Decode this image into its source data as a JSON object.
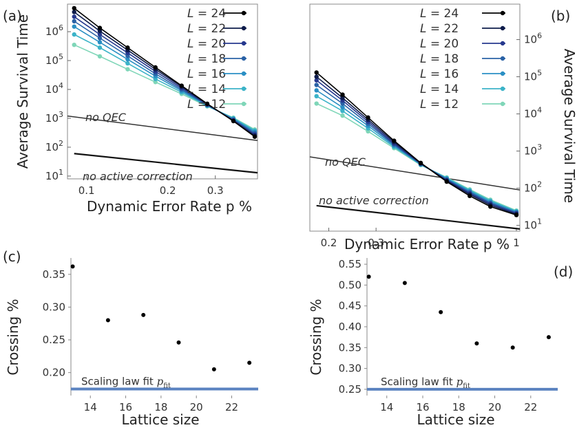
{
  "panels": [
    {
      "letter": "(a)",
      "xlabel": "Dynamic Error Rate p %",
      "ylabel": "Average Survival Time",
      "x_ticks": [
        "0.1",
        "0.2",
        "0.3"
      ],
      "y_ticks": [
        "10^1",
        "10^2",
        "10^3",
        "10^4",
        "10^5",
        "10^6"
      ],
      "annotations": [
        "no QEC",
        "no active correction"
      ],
      "legend_labels": [
        "L = 24",
        "L = 22",
        "L = 20",
        "L = 18",
        "L = 16",
        "L = 14",
        "L = 12"
      ]
    },
    {
      "letter": "(b)",
      "xlabel": "Dynamic Error Rate p %",
      "ylabel": "Average Survival Time",
      "x_ticks": [
        "0.2",
        "0.3",
        "1"
      ],
      "y_ticks": [
        "10^1",
        "10^2",
        "10^3",
        "10^4",
        "10^5",
        "10^6"
      ],
      "annotations": [
        "no QEC",
        "no active correction"
      ],
      "legend_labels": [
        "L = 24",
        "L = 22",
        "L = 20",
        "L = 18",
        "L = 16",
        "L = 14",
        "L = 12"
      ]
    },
    {
      "letter": "(c)",
      "xlabel": "Lattice size",
      "ylabel": "Crossing %",
      "x_ticks": [
        "14",
        "16",
        "18",
        "20",
        "22"
      ],
      "y_ticks": [
        "0.20",
        "0.25",
        "0.30",
        "0.35"
      ],
      "fit_label": "Scaling law fit p_fit"
    },
    {
      "letter": "(d)",
      "xlabel": "Lattice size",
      "ylabel": "Crossing %",
      "x_ticks": [
        "14",
        "16",
        "18",
        "20",
        "22"
      ],
      "y_ticks": [
        "0.25",
        "0.30",
        "0.35",
        "0.40",
        "0.45",
        "0.50",
        "0.55"
      ],
      "fit_label": "Scaling law fit p_fit"
    }
  ],
  "colors": {
    "L24": "#000000",
    "L22": "#0d1b4a",
    "L20": "#26388e",
    "L18": "#2a62a6",
    "L16": "#2a8fc4",
    "L14": "#3bb3c8",
    "L12": "#7fd6b8",
    "reference_line": "#333333",
    "fit_line": "#5a82c0",
    "points": "#000000"
  },
  "chart_data": [
    {
      "type": "line",
      "panel": "a",
      "x_scale": "log",
      "y_scale": "log",
      "xlim": [
        0.085,
        0.43
      ],
      "ylim": [
        8,
        9000000
      ],
      "x": [
        0.09,
        0.112,
        0.142,
        0.18,
        0.225,
        0.28,
        0.35,
        0.42
      ],
      "series": [
        {
          "name": "L = 24",
          "values": [
            6500000,
            1350000,
            280000,
            58000,
            13500,
            3200,
            800,
            230
          ]
        },
        {
          "name": "L = 22",
          "values": [
            4800000,
            1050000,
            230000,
            50000,
            12500,
            3100,
            820,
            250
          ]
        },
        {
          "name": "L = 20",
          "values": [
            3300000,
            800000,
            185000,
            42000,
            11200,
            3000,
            850,
            275
          ]
        },
        {
          "name": "L = 18",
          "values": [
            2300000,
            600000,
            145000,
            35000,
            10000,
            2900,
            900,
            305
          ]
        },
        {
          "name": "L = 16",
          "values": [
            1500000,
            430000,
            110000,
            29000,
            9000,
            2800,
            950,
            340
          ]
        },
        {
          "name": "L = 14",
          "values": [
            800000,
            280000,
            80000,
            23000,
            8000,
            2700,
            1000,
            375
          ]
        },
        {
          "name": "L = 12",
          "values": [
            350000,
            140000,
            50000,
            18000,
            7000,
            2600,
            1050,
            410
          ]
        }
      ],
      "reference_lines": [
        {
          "name": "no QEC",
          "x": [
            0.085,
            0.43
          ],
          "y": [
            1200,
            170
          ]
        },
        {
          "name": "no active correction",
          "x": [
            0.09,
            0.43
          ],
          "y": [
            60,
            13
          ]
        }
      ]
    },
    {
      "type": "line",
      "panel": "b",
      "x_scale": "log",
      "y_scale": "log",
      "xlim": [
        0.17,
        1.03
      ],
      "ylim": [
        7,
        9000000
      ],
      "x": [
        0.18,
        0.225,
        0.28,
        0.35,
        0.44,
        0.55,
        0.67,
        0.8,
        1.0
      ],
      "series": [
        {
          "name": "L = 24",
          "values": [
            130000,
            33000,
            8000,
            1900,
            480,
            150,
            62,
            32,
            19
          ]
        },
        {
          "name": "L = 22",
          "values": [
            100000,
            27000,
            7000,
            1750,
            470,
            158,
            68,
            35,
            20
          ]
        },
        {
          "name": "L = 20",
          "values": [
            80000,
            23000,
            6200,
            1600,
            460,
            165,
            73,
            38,
            21
          ]
        },
        {
          "name": "L = 18",
          "values": [
            60000,
            19000,
            5500,
            1500,
            450,
            172,
            78,
            40,
            22
          ]
        },
        {
          "name": "L = 16",
          "values": [
            43000,
            15000,
            4800,
            1400,
            440,
            180,
            83,
            43,
            23
          ]
        },
        {
          "name": "L = 14",
          "values": [
            30000,
            12000,
            4100,
            1300,
            430,
            188,
            88,
            46,
            24
          ]
        },
        {
          "name": "L = 12",
          "values": [
            19000,
            9000,
            3400,
            1200,
            420,
            195,
            93,
            49,
            25
          ]
        }
      ],
      "reference_lines": [
        {
          "name": "no QEC",
          "x": [
            0.17,
            1.03
          ],
          "y": [
            700,
            90
          ]
        },
        {
          "name": "no active correction",
          "x": [
            0.18,
            1.03
          ],
          "y": [
            34,
            8
          ]
        }
      ]
    },
    {
      "type": "scatter",
      "panel": "c",
      "xlim": [
        12.9,
        23.5
      ],
      "ylim": [
        0.165,
        0.375
      ],
      "x": [
        13,
        15,
        17,
        19,
        21,
        23
      ],
      "y": [
        0.362,
        0.28,
        0.288,
        0.246,
        0.205,
        0.215
      ],
      "fit_value": 0.175
    },
    {
      "type": "scatter",
      "panel": "d",
      "xlim": [
        12.9,
        23.5
      ],
      "ylim": [
        0.235,
        0.565
      ],
      "x": [
        13,
        15,
        17,
        19,
        21,
        23
      ],
      "y": [
        0.52,
        0.505,
        0.435,
        0.36,
        0.35,
        0.375
      ],
      "fit_value": 0.25
    }
  ]
}
